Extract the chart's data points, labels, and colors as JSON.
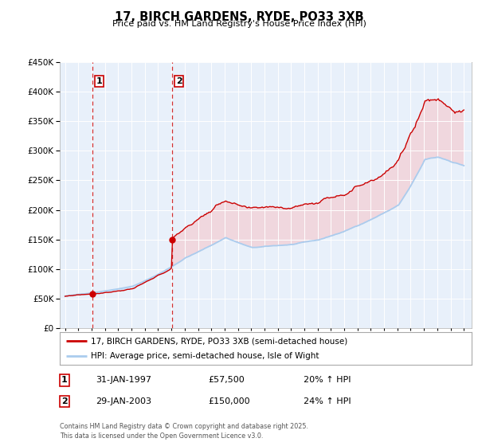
{
  "title": "17, BIRCH GARDENS, RYDE, PO33 3XB",
  "subtitle": "Price paid vs. HM Land Registry's House Price Index (HPI)",
  "legend_label_red": "17, BIRCH GARDENS, RYDE, PO33 3XB (semi-detached house)",
  "legend_label_blue": "HPI: Average price, semi-detached house, Isle of Wight",
  "sale1_date": "31-JAN-1997",
  "sale1_price": "£57,500",
  "sale1_hpi": "20% ↑ HPI",
  "sale1_year": 1997.08,
  "sale1_value": 57500,
  "sale2_date": "29-JAN-2003",
  "sale2_price": "£150,000",
  "sale2_hpi": "24% ↑ HPI",
  "sale2_year": 2003.08,
  "sale2_value": 150000,
  "footer": "Contains HM Land Registry data © Crown copyright and database right 2025.\nThis data is licensed under the Open Government Licence v3.0.",
  "ylim": [
    0,
    450000
  ],
  "yticks": [
    0,
    50000,
    100000,
    150000,
    200000,
    250000,
    300000,
    350000,
    400000,
    450000
  ],
  "color_red": "#cc0000",
  "color_blue": "#aaccee",
  "color_blue_fill": "#bbddff",
  "color_red_fill": "#ffaaaa",
  "plot_bg": "#e8f0fa"
}
